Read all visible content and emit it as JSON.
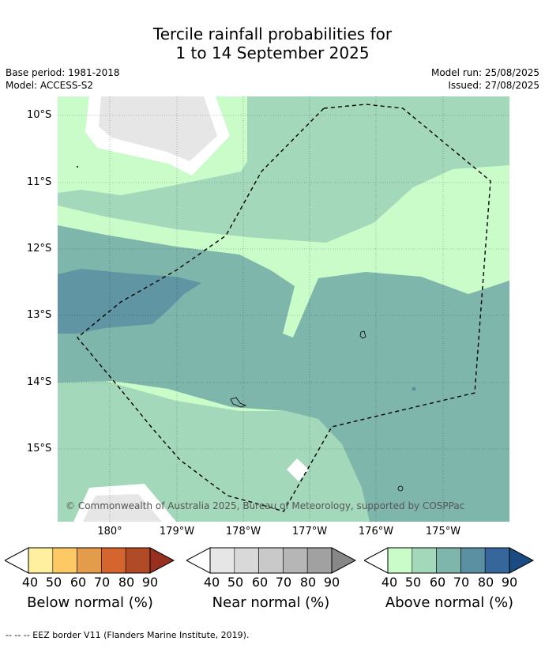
{
  "title": {
    "line1": "Tercile rainfall probabilities for",
    "line2": "1 to 14 September 2025"
  },
  "info": {
    "base_period": "Base period: 1981-2018",
    "model": "Model: ACCESS-S2",
    "model_run": "Model run: 25/08/2025",
    "issued": "Issued: 27/08/2025"
  },
  "map": {
    "lat_labels": [
      "10°S",
      "11°S",
      "12°S",
      "13°S",
      "14°S",
      "15°S"
    ],
    "lon_labels": [
      "180°",
      "179°W",
      "178°W",
      "177°W",
      "176°W",
      "175°W"
    ],
    "copyright": "© Commonwealth of Australia 2025, Bureau of Meteorology, supported by COSPPac"
  },
  "colorbars": [
    {
      "title": "Below normal (%)",
      "ticks": [
        "40",
        "50",
        "60",
        "70",
        "80",
        "90"
      ],
      "colors": [
        "#fff0a0",
        "#fdc964",
        "#e39b4c",
        "#d4652f",
        "#b04a27",
        "#98301f"
      ]
    },
    {
      "title": "Near normal (%)",
      "ticks": [
        "40",
        "50",
        "60",
        "70",
        "80",
        "90"
      ],
      "colors": [
        "#e6e6e6",
        "#d9d9d9",
        "#c9c9c9",
        "#b6b6b6",
        "#a1a1a1",
        "#878787"
      ]
    },
    {
      "title": "Above normal (%)",
      "ticks": [
        "40",
        "50",
        "60",
        "70",
        "80",
        "90"
      ],
      "colors": [
        "#c9fcc9",
        "#a3d8bb",
        "#7fb6ab",
        "#5b8fa2",
        "#37679a",
        "#1a4b83"
      ]
    }
  ],
  "footnote": "--  --  -- EEZ border V11 (Flanders Marine Institute, 2019)."
}
